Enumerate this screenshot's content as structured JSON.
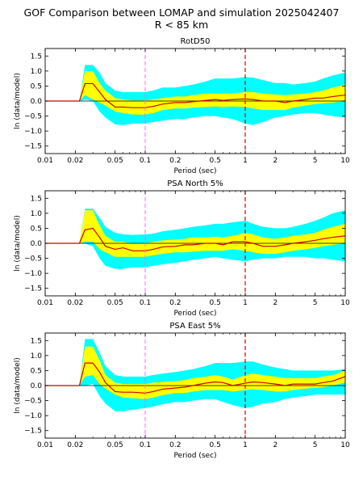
{
  "figure": {
    "title_line1": "GOF Comparison between LOMAP and simulation 2025042407",
    "title_line2": "R < 85 km"
  },
  "style": {
    "cyan_band": "#00ffff",
    "yellow_band": "#ffff00",
    "bias_line": "#cc0000",
    "zero_line": "#000000",
    "left_vline": "#ff66ff",
    "right_vline": "#dd0000"
  },
  "chart_data": [
    {
      "type": "area",
      "title": "RotD50",
      "xlabel": "Period (sec)",
      "ylabel": "ln (data/model)",
      "xscale": "log",
      "xlim": [
        0.01,
        10
      ],
      "ylim": [
        -1.75,
        1.75
      ],
      "xticks": [
        0.01,
        0.02,
        0.05,
        0.1,
        0.2,
        0.5,
        1,
        2,
        5,
        10
      ],
      "xtick_labels": [
        "0.01",
        "0.02",
        "0.05",
        "0.1",
        "0.2",
        "0.5",
        "1",
        "2",
        "5",
        "10"
      ],
      "yticks": [
        1.5,
        1.0,
        0.5,
        0.0,
        -0.5,
        -1.0,
        -1.5
      ],
      "ytick_labels": [
        "1.5",
        "1.0",
        "0.5",
        "0.0",
        "−0.5",
        "−1.0",
        "−1.5"
      ],
      "vlines": [
        0.1,
        1.0
      ],
      "period": [
        0.01,
        0.022,
        0.025,
        0.03,
        0.035,
        0.04,
        0.05,
        0.06,
        0.075,
        0.1,
        0.12,
        0.15,
        0.2,
        0.25,
        0.3,
        0.4,
        0.5,
        0.6,
        0.75,
        1.0,
        1.2,
        1.5,
        2.0,
        2.5,
        3.0,
        4.0,
        5.0,
        6.0,
        7.5,
        10.0
      ],
      "bias": [
        0.0,
        0.0,
        0.58,
        0.58,
        0.3,
        0.05,
        -0.2,
        -0.2,
        -0.22,
        -0.22,
        -0.18,
        -0.1,
        -0.05,
        -0.05,
        -0.02,
        0.02,
        0.05,
        0.02,
        0.05,
        0.07,
        0.05,
        0.0,
        0.0,
        -0.05,
        0.0,
        0.05,
        0.1,
        0.1,
        0.15,
        0.2
      ],
      "std_lower": [
        0.0,
        0.0,
        0.2,
        0.05,
        -0.05,
        -0.15,
        -0.35,
        -0.4,
        -0.45,
        -0.45,
        -0.4,
        -0.3,
        -0.25,
        -0.25,
        -0.22,
        -0.2,
        -0.18,
        -0.2,
        -0.18,
        -0.2,
        -0.25,
        -0.3,
        -0.3,
        -0.3,
        -0.22,
        -0.15,
        -0.1,
        -0.08,
        -0.05,
        0.0
      ],
      "std_upper": [
        0.0,
        0.0,
        1.0,
        1.0,
        0.6,
        0.35,
        0.1,
        0.05,
        0.02,
        0.02,
        0.05,
        0.1,
        0.15,
        0.15,
        0.2,
        0.25,
        0.25,
        0.25,
        0.25,
        0.3,
        0.3,
        0.25,
        0.22,
        0.2,
        0.22,
        0.25,
        0.3,
        0.35,
        0.45,
        0.55
      ],
      "conf_lower": [
        0.0,
        0.0,
        0.05,
        0.0,
        -0.35,
        -0.55,
        -0.78,
        -0.8,
        -0.75,
        -0.75,
        -0.7,
        -0.65,
        -0.6,
        -0.6,
        -0.55,
        -0.5,
        -0.5,
        -0.55,
        -0.6,
        -0.75,
        -0.8,
        -0.7,
        -0.55,
        -0.5,
        -0.45,
        -0.4,
        -0.4,
        -0.45,
        -0.5,
        -0.55
      ],
      "conf_upper": [
        0.0,
        0.0,
        1.2,
        1.2,
        0.95,
        0.6,
        0.35,
        0.3,
        0.3,
        0.3,
        0.35,
        0.45,
        0.45,
        0.5,
        0.55,
        0.65,
        0.75,
        0.75,
        0.75,
        0.8,
        0.78,
        0.7,
        0.6,
        0.6,
        0.55,
        0.6,
        0.65,
        0.75,
        0.85,
        0.95
      ]
    },
    {
      "type": "area",
      "title": "PSA North 5%",
      "xlabel": "Period (sec)",
      "ylabel": "ln (data/model)",
      "xscale": "log",
      "xlim": [
        0.01,
        10
      ],
      "ylim": [
        -1.75,
        1.75
      ],
      "xticks": [
        0.01,
        0.02,
        0.05,
        0.1,
        0.2,
        0.5,
        1,
        2,
        5,
        10
      ],
      "xtick_labels": [
        "0.01",
        "0.02",
        "0.05",
        "0.1",
        "0.2",
        "0.5",
        "1",
        "2",
        "5",
        "10"
      ],
      "yticks": [
        1.5,
        1.0,
        0.5,
        0.0,
        -0.5,
        -1.0,
        -1.5
      ],
      "ytick_labels": [
        "1.5",
        "1.0",
        "0.5",
        "0.0",
        "−0.5",
        "−1.0",
        "−1.5"
      ],
      "vlines": [
        0.1,
        1.0
      ],
      "period": [
        0.01,
        0.022,
        0.025,
        0.03,
        0.035,
        0.04,
        0.05,
        0.06,
        0.075,
        0.1,
        0.12,
        0.15,
        0.2,
        0.25,
        0.3,
        0.4,
        0.5,
        0.6,
        0.75,
        1.0,
        1.2,
        1.5,
        2.0,
        2.5,
        3.0,
        4.0,
        5.0,
        6.0,
        7.5,
        10.0
      ],
      "bias": [
        0.0,
        0.0,
        0.45,
        0.5,
        0.2,
        -0.1,
        -0.2,
        -0.15,
        -0.25,
        -0.25,
        -0.2,
        -0.12,
        -0.1,
        -0.05,
        -0.05,
        0.0,
        0.0,
        -0.05,
        0.05,
        0.05,
        0.0,
        -0.1,
        -0.1,
        -0.05,
        0.0,
        0.05,
        0.1,
        0.15,
        0.2,
        0.25
      ],
      "std_lower": [
        0.0,
        0.0,
        0.05,
        0.05,
        -0.2,
        -0.3,
        -0.45,
        -0.45,
        -0.45,
        -0.45,
        -0.4,
        -0.35,
        -0.3,
        -0.3,
        -0.28,
        -0.25,
        -0.25,
        -0.25,
        -0.2,
        -0.25,
        -0.3,
        -0.35,
        -0.35,
        -0.3,
        -0.25,
        -0.2,
        -0.15,
        -0.1,
        -0.05,
        0.0
      ],
      "std_upper": [
        0.0,
        0.0,
        1.1,
        1.1,
        0.6,
        0.25,
        0.05,
        0.05,
        0.0,
        0.0,
        0.05,
        0.1,
        0.12,
        0.15,
        0.2,
        0.2,
        0.22,
        0.2,
        0.25,
        0.35,
        0.3,
        0.2,
        0.15,
        0.2,
        0.25,
        0.3,
        0.35,
        0.45,
        0.55,
        0.65
      ],
      "conf_lower": [
        0.0,
        0.0,
        0.0,
        -0.1,
        -0.5,
        -0.75,
        -0.85,
        -0.85,
        -0.8,
        -0.8,
        -0.75,
        -0.7,
        -0.65,
        -0.6,
        -0.55,
        -0.5,
        -0.45,
        -0.5,
        -0.55,
        -0.6,
        -0.55,
        -0.5,
        -0.5,
        -0.45,
        -0.45,
        -0.45,
        -0.5,
        -0.5,
        -0.55,
        -0.6
      ],
      "conf_upper": [
        0.0,
        0.0,
        1.15,
        1.15,
        0.85,
        0.55,
        0.35,
        0.3,
        0.28,
        0.3,
        0.32,
        0.4,
        0.45,
        0.5,
        0.55,
        0.6,
        0.65,
        0.65,
        0.7,
        0.75,
        0.65,
        0.55,
        0.5,
        0.5,
        0.55,
        0.65,
        0.75,
        0.85,
        1.0,
        1.1
      ]
    },
    {
      "type": "area",
      "title": "PSA East 5%",
      "xlabel": "Period (sec)",
      "ylabel": "ln (data/model)",
      "xscale": "log",
      "xlim": [
        0.01,
        10
      ],
      "ylim": [
        -1.75,
        1.75
      ],
      "xticks": [
        0.01,
        0.02,
        0.05,
        0.1,
        0.2,
        0.5,
        1,
        2,
        5,
        10
      ],
      "xtick_labels": [
        "0.01",
        "0.02",
        "0.05",
        "0.1",
        "0.2",
        "0.5",
        "1",
        "2",
        "5",
        "10"
      ],
      "yticks": [
        1.5,
        1.0,
        0.5,
        0.0,
        -0.5,
        -1.0,
        -1.5
      ],
      "ytick_labels": [
        "1.5",
        "1.0",
        "0.5",
        "0.0",
        "−0.5",
        "−1.0",
        "−1.5"
      ],
      "vlines": [
        0.1,
        1.0
      ],
      "period": [
        0.01,
        0.022,
        0.025,
        0.03,
        0.035,
        0.04,
        0.05,
        0.06,
        0.075,
        0.1,
        0.12,
        0.15,
        0.2,
        0.25,
        0.3,
        0.4,
        0.5,
        0.6,
        0.75,
        1.0,
        1.2,
        1.5,
        2.0,
        2.5,
        3.0,
        4.0,
        5.0,
        6.0,
        7.5,
        10.0
      ],
      "bias": [
        0.0,
        0.0,
        0.75,
        0.75,
        0.45,
        0.1,
        -0.2,
        -0.22,
        -0.22,
        -0.25,
        -0.2,
        -0.12,
        -0.08,
        -0.05,
        0.0,
        0.08,
        0.12,
        0.1,
        0.0,
        0.08,
        0.12,
        0.1,
        0.05,
        0.0,
        0.05,
        0.05,
        0.05,
        0.1,
        0.15,
        0.3
      ],
      "std_lower": [
        0.0,
        0.0,
        0.3,
        0.35,
        0.05,
        -0.1,
        -0.3,
        -0.4,
        -0.42,
        -0.45,
        -0.4,
        -0.32,
        -0.25,
        -0.25,
        -0.2,
        -0.15,
        -0.15,
        -0.15,
        -0.2,
        -0.15,
        -0.12,
        -0.15,
        -0.2,
        -0.2,
        -0.15,
        -0.1,
        -0.08,
        -0.05,
        0.0,
        0.1
      ],
      "std_upper": [
        0.0,
        0.0,
        1.3,
        1.3,
        0.85,
        0.35,
        0.1,
        0.05,
        0.05,
        0.05,
        0.1,
        0.12,
        0.15,
        0.18,
        0.25,
        0.3,
        0.35,
        0.3,
        0.2,
        0.35,
        0.4,
        0.35,
        0.3,
        0.25,
        0.25,
        0.25,
        0.25,
        0.3,
        0.35,
        0.5
      ],
      "conf_lower": [
        0.0,
        0.0,
        0.0,
        0.05,
        -0.35,
        -0.6,
        -0.85,
        -0.85,
        -0.8,
        -0.75,
        -0.7,
        -0.62,
        -0.55,
        -0.55,
        -0.5,
        -0.45,
        -0.45,
        -0.55,
        -0.65,
        -0.75,
        -0.7,
        -0.6,
        -0.55,
        -0.45,
        -0.4,
        -0.35,
        -0.3,
        -0.3,
        -0.3,
        -0.3
      ],
      "conf_upper": [
        0.0,
        0.0,
        1.55,
        1.55,
        1.1,
        0.65,
        0.35,
        0.3,
        0.3,
        0.3,
        0.35,
        0.4,
        0.45,
        0.5,
        0.55,
        0.65,
        0.75,
        0.75,
        0.75,
        0.8,
        0.8,
        0.7,
        0.6,
        0.55,
        0.5,
        0.5,
        0.5,
        0.5,
        0.5,
        0.55
      ]
    }
  ]
}
